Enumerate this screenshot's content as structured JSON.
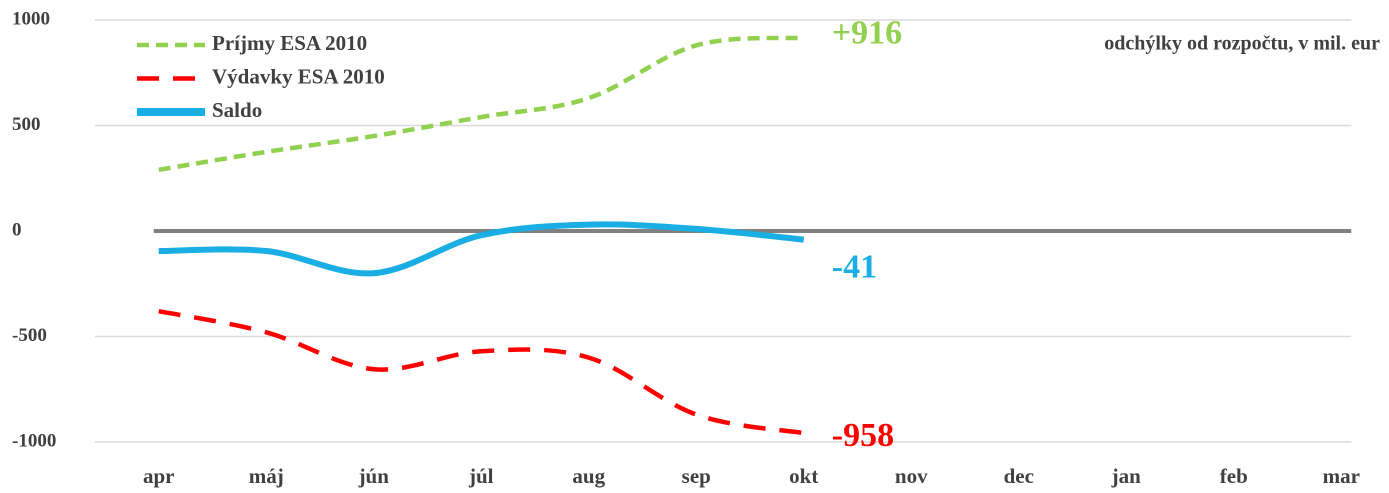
{
  "chart_data": {
    "type": "line",
    "annotation": "odchýlky od rozpočtu, v mil. eur",
    "categories": [
      "apr",
      "máj",
      "jún",
      "júl",
      "aug",
      "sep",
      "okt",
      "nov",
      "dec",
      "jan",
      "feb",
      "mar"
    ],
    "series": [
      {
        "name": "Príjmy ESA 2010",
        "color": "#92d050",
        "dash": "dotted",
        "values": [
          290,
          375,
          450,
          540,
          630,
          880,
          916,
          null,
          null,
          null,
          null,
          null
        ],
        "value_labels": [
          null,
          null,
          null,
          null,
          null,
          null,
          "+916",
          null,
          null,
          null,
          null,
          null
        ]
      },
      {
        "name": "Výdavky ESA 2010",
        "color": "#ff0000",
        "dash": "dashed",
        "values": [
          -380,
          -480,
          -655,
          -570,
          -600,
          -870,
          -958,
          null,
          null,
          null,
          null,
          null
        ],
        "value_labels": [
          null,
          null,
          null,
          null,
          null,
          null,
          "-958",
          null,
          null,
          null,
          null,
          null
        ]
      },
      {
        "name": "Saldo",
        "color": "#1aaee5",
        "dash": "solid",
        "values": [
          -95,
          -95,
          -200,
          -20,
          30,
          10,
          -41,
          null,
          null,
          null,
          null,
          null
        ],
        "value_labels": [
          null,
          null,
          null,
          null,
          null,
          null,
          "-41",
          null,
          null,
          null,
          null,
          null
        ]
      }
    ],
    "ylim": [
      -1000,
      1000
    ],
    "yticks": [
      -1000,
      -500,
      0,
      500,
      1000
    ],
    "grid": true,
    "legend": "top-left"
  }
}
